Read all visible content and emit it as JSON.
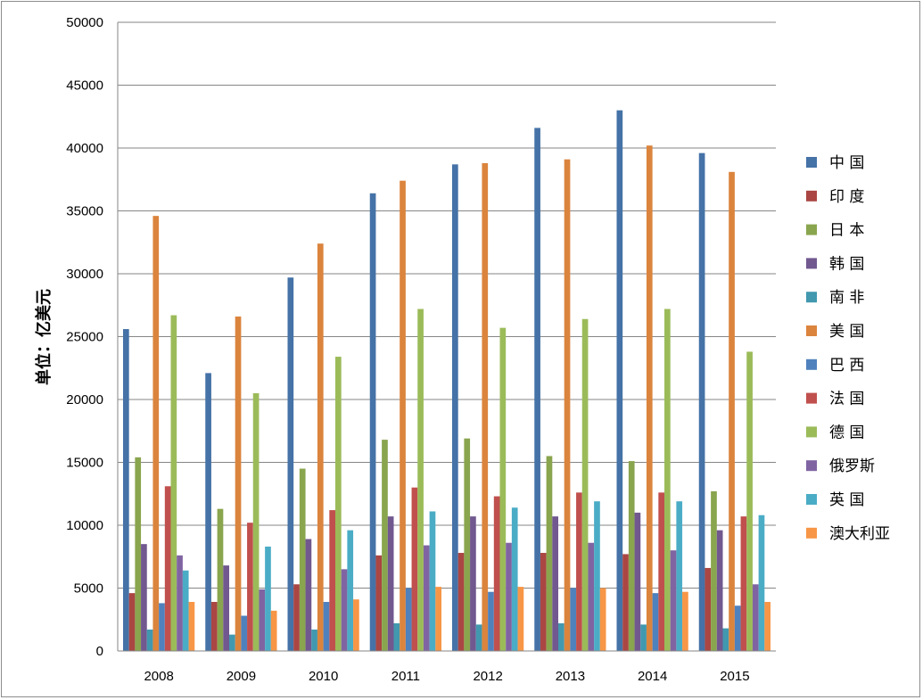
{
  "chart_data": {
    "type": "bar",
    "title": "",
    "xlabel": "",
    "ylabel": "单位：亿美元",
    "ylim": [
      0,
      50000
    ],
    "yticks": [
      0,
      5000,
      10000,
      15000,
      20000,
      25000,
      30000,
      35000,
      40000,
      45000,
      50000
    ],
    "grid": true,
    "legend_position": "right",
    "categories": [
      "2008",
      "2009",
      "2010",
      "2011",
      "2012",
      "2013",
      "2014",
      "2015"
    ],
    "series": [
      {
        "name": "中 国",
        "color": "#4572A7",
        "values": [
          25600,
          22100,
          29700,
          36400,
          38700,
          41600,
          43000,
          39600
        ]
      },
      {
        "name": "印 度",
        "color": "#AA4643",
        "values": [
          4600,
          3900,
          5300,
          7600,
          7800,
          7800,
          7700,
          6600
        ]
      },
      {
        "name": "日 本",
        "color": "#89A54E",
        "values": [
          15400,
          11300,
          14500,
          16800,
          16900,
          15500,
          15100,
          12700
        ]
      },
      {
        "name": "韩 国",
        "color": "#71588F",
        "values": [
          8500,
          6800,
          8900,
          10700,
          10700,
          10700,
          11000,
          9600
        ]
      },
      {
        "name": "南 非",
        "color": "#4198AF",
        "values": [
          1700,
          1300,
          1700,
          2200,
          2100,
          2200,
          2100,
          1800
        ]
      },
      {
        "name": "美 国",
        "color": "#DB843D",
        "values": [
          34600,
          26600,
          32400,
          37400,
          38800,
          39100,
          40200,
          38100
        ]
      },
      {
        "name": "巴 西",
        "color": "#4F81BD",
        "values": [
          3800,
          2800,
          3900,
          5000,
          4700,
          5000,
          4600,
          3600
        ]
      },
      {
        "name": "法 国",
        "color": "#C0504D",
        "values": [
          13100,
          10200,
          11200,
          13000,
          12300,
          12600,
          12600,
          10700
        ]
      },
      {
        "name": "德 国",
        "color": "#9BBB59",
        "values": [
          26700,
          20500,
          23400,
          27200,
          25700,
          26400,
          27200,
          23800
        ]
      },
      {
        "name": "俄罗斯",
        "color": "#8064A2",
        "values": [
          7600,
          4900,
          6500,
          8400,
          8600,
          8600,
          8000,
          5300
        ]
      },
      {
        "name": "英 国",
        "color": "#4BACC6",
        "values": [
          6400,
          8300,
          9600,
          11100,
          11400,
          11900,
          11900,
          10800
        ]
      },
      {
        "name": "澳大利亚",
        "color": "#F79646",
        "values": [
          3900,
          3200,
          4100,
          5100,
          5100,
          5000,
          4700,
          3900
        ]
      }
    ]
  }
}
